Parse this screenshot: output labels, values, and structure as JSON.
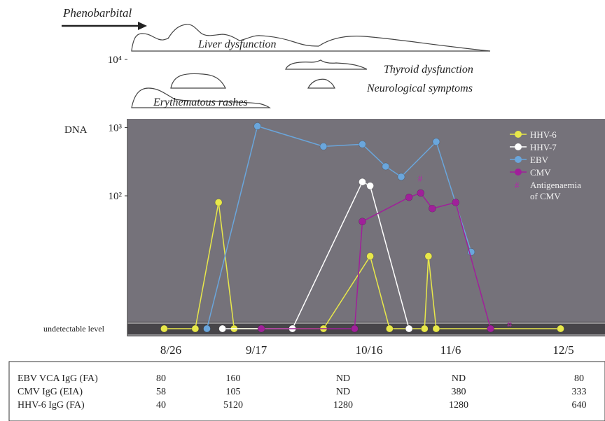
{
  "clinical_course": {
    "drug": "Phenobarbital",
    "events": [
      {
        "label": "Liver dysfunction"
      },
      {
        "label": "Thyroid dysfunction"
      },
      {
        "label": "Neurological symptoms"
      },
      {
        "label": "Erythematous rashes"
      }
    ]
  },
  "chart_data": {
    "type": "line",
    "y_scale": "log",
    "y_axis_label": "DNA",
    "y_ticks": [
      "10⁴",
      "10³",
      "10²"
    ],
    "y_tick_values": [
      10000,
      1000,
      100
    ],
    "baseline_label": "undetectable level",
    "x_tick_labels": [
      "8/26",
      "9/17",
      "10/16",
      "11/6",
      "12/5"
    ],
    "x_tick_days": [
      0,
      22,
      51,
      72,
      101
    ],
    "x_unit_note": "x values are days after 8/26",
    "series": [
      {
        "name": "HHV-6",
        "color": "#e8e84a",
        "points": [
          [
            -1,
            0
          ],
          [
            7,
            0
          ],
          [
            13,
            80
          ],
          [
            17,
            0
          ],
          [
            40,
            0
          ],
          [
            52,
            13
          ],
          [
            57,
            0
          ],
          [
            66,
            0
          ],
          [
            67,
            13
          ],
          [
            69,
            0
          ],
          [
            101,
            0
          ]
        ]
      },
      {
        "name": "HHV-7",
        "color": "#ffffff",
        "points": [
          [
            14,
            0
          ],
          [
            24,
            0
          ],
          [
            32,
            0
          ],
          [
            50,
            160
          ],
          [
            52,
            140
          ],
          [
            62,
            0
          ]
        ]
      },
      {
        "name": "EBV",
        "color": "#6aa6dc",
        "points": [
          [
            10,
            0
          ],
          [
            23,
            1050
          ],
          [
            40,
            530
          ],
          [
            50,
            570
          ],
          [
            56,
            270
          ],
          [
            60,
            190
          ],
          [
            69,
            620
          ],
          [
            78,
            15
          ]
        ]
      },
      {
        "name": "CMV",
        "color": "#a0209a",
        "points": [
          [
            24,
            0
          ],
          [
            48,
            0
          ],
          [
            50,
            42
          ],
          [
            62,
            95
          ],
          [
            65,
            110
          ],
          [
            68,
            65
          ],
          [
            74,
            80
          ],
          [
            83,
            0
          ]
        ]
      }
    ],
    "annotation_marker": "#",
    "annotation_label": "Antigenaemia of CMV",
    "annotation_points": [
      [
        65,
        155
      ],
      [
        88,
        0
      ]
    ],
    "background": "#75727a"
  },
  "serology": {
    "dates": [
      "8/26",
      "9/17",
      "10/16",
      "11/6",
      "12/5"
    ],
    "rows": [
      {
        "label": "EBV VCA IgG (FA)",
        "values": [
          "80",
          "160",
          "ND",
          "ND",
          "80"
        ]
      },
      {
        "label": "CMV IgG (EIA)",
        "values": [
          "58",
          "105",
          "ND",
          "380",
          "333"
        ]
      },
      {
        "label": "HHV-6 IgG (FA)",
        "values": [
          "40",
          "5120",
          "1280",
          "1280",
          "640"
        ]
      }
    ]
  }
}
